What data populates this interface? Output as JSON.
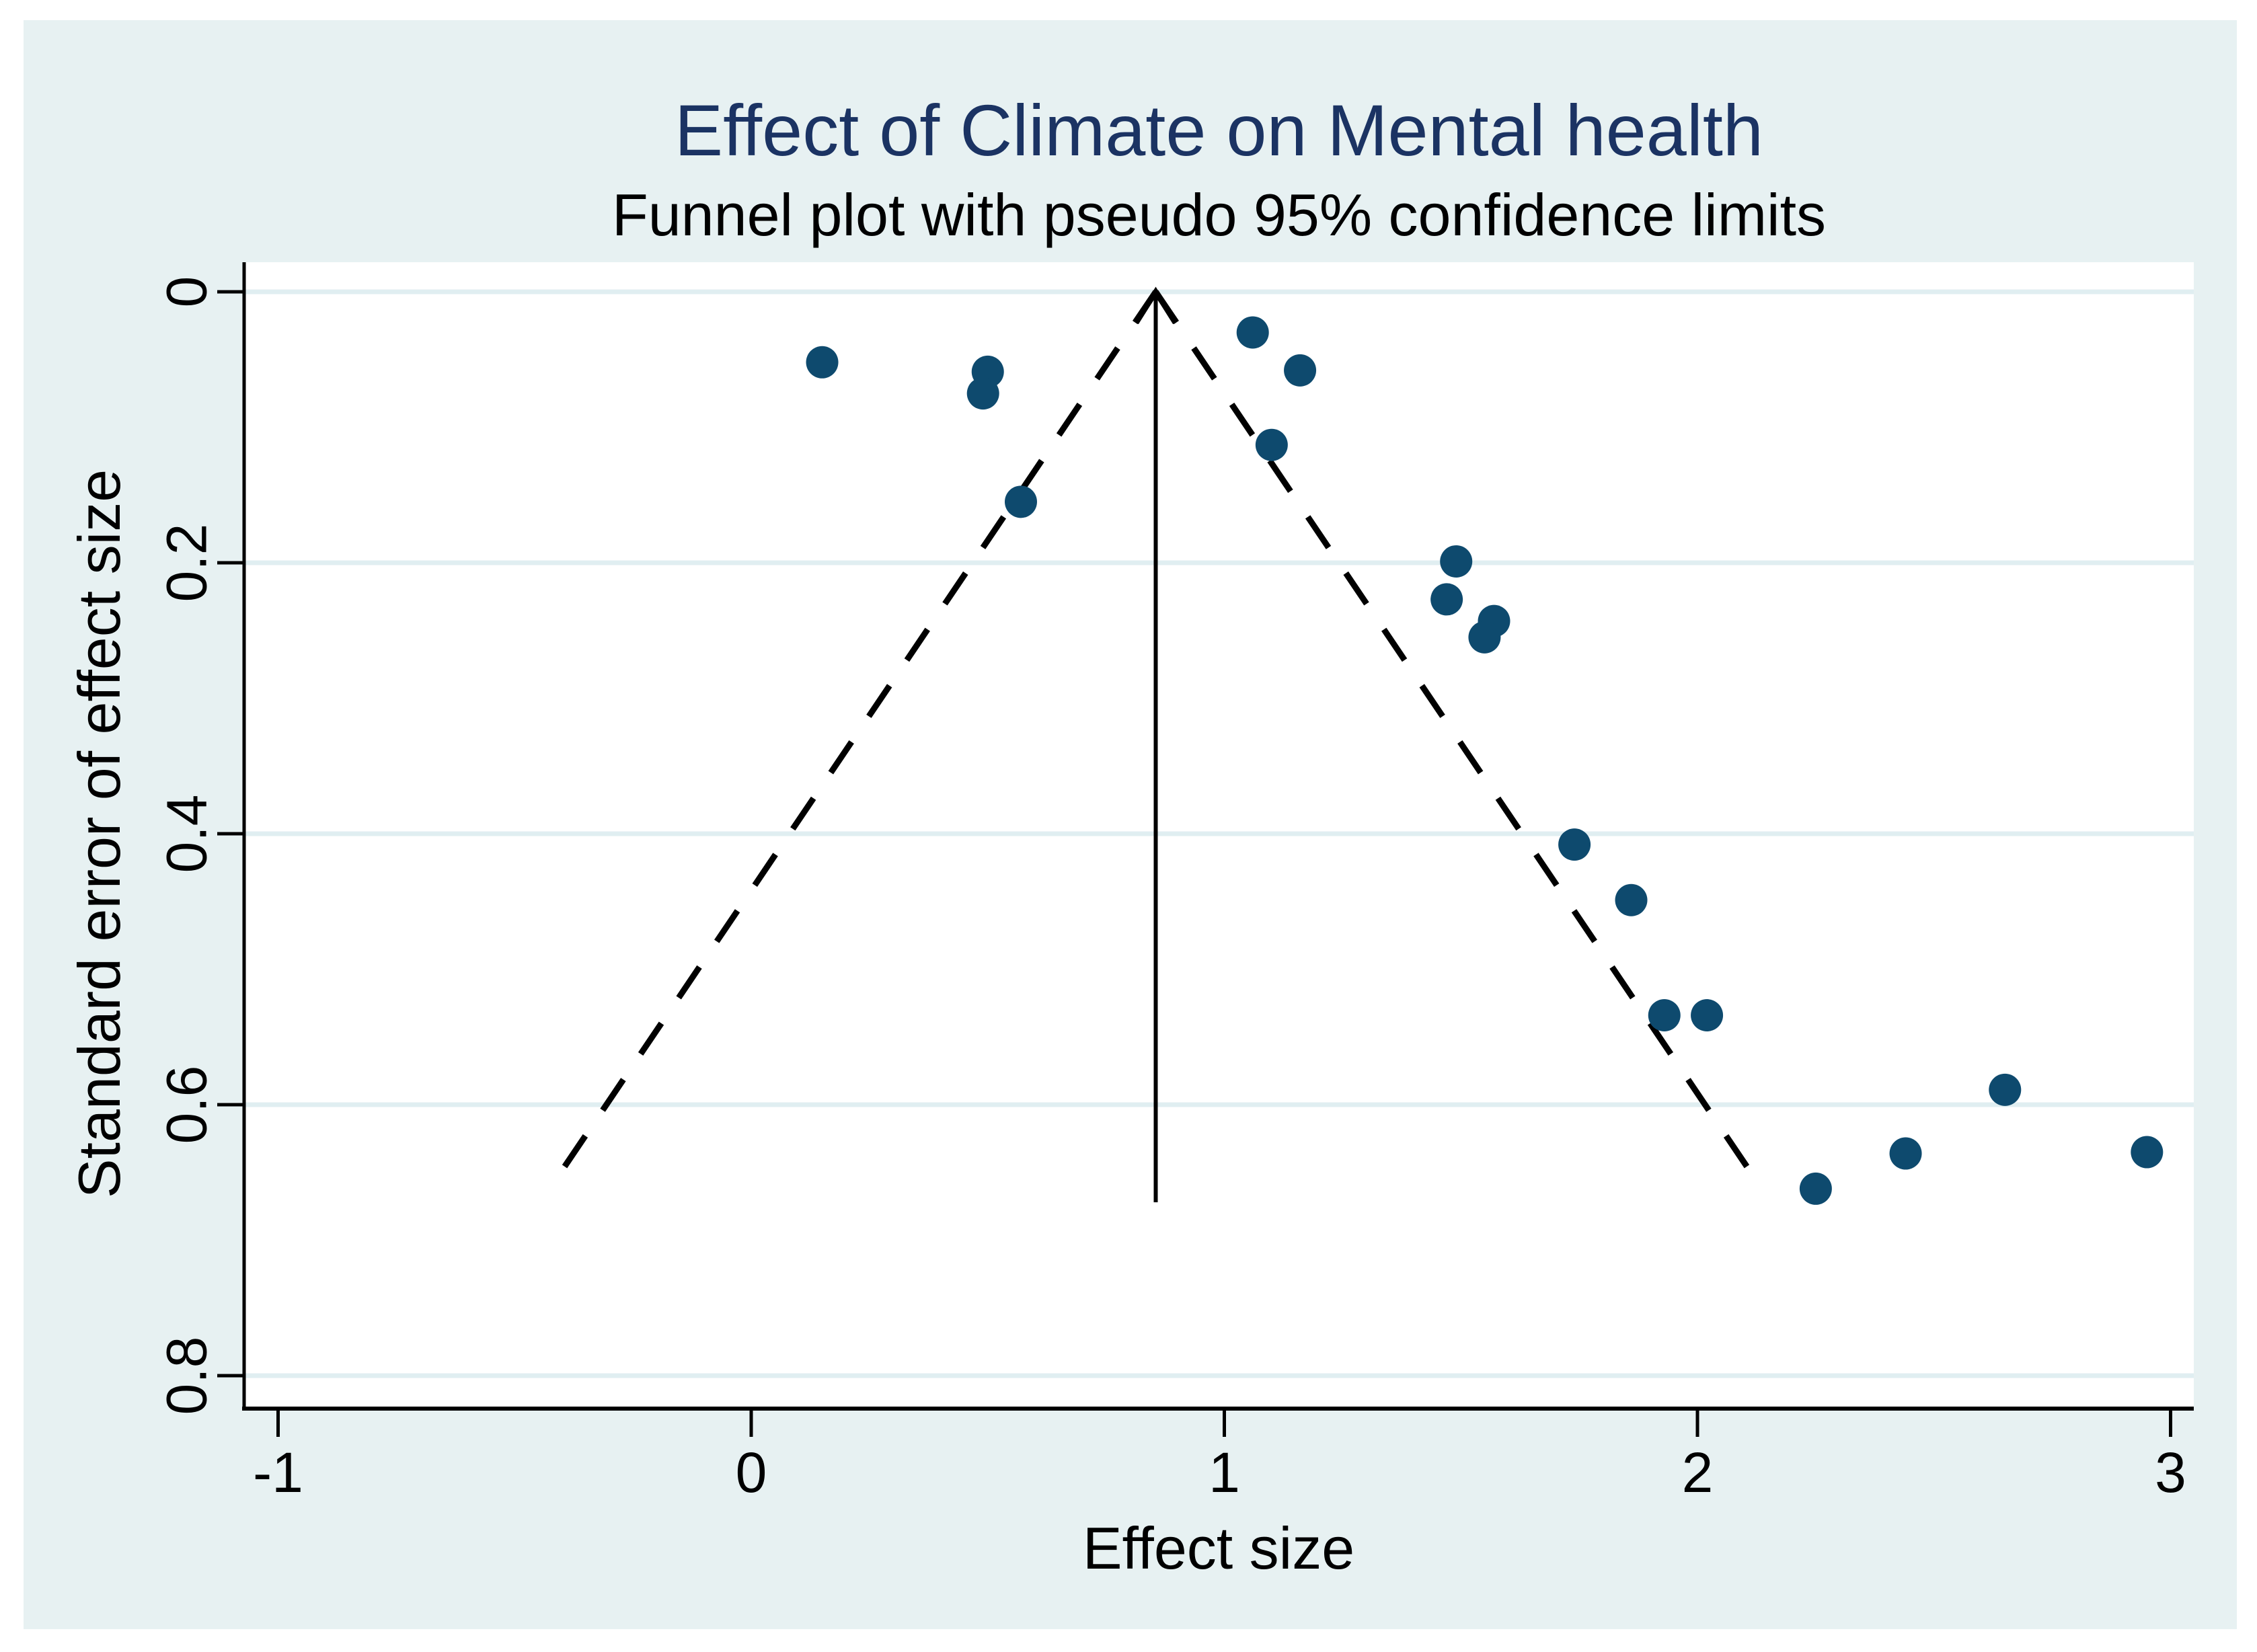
{
  "chart_data": {
    "type": "scatter",
    "chart_kind": "funnel-plot",
    "title": "Effect of Climate on Mental health",
    "subtitle": "Funnel plot with pseudo 95% confidence limits",
    "xlabel": "Effect size",
    "ylabel": "Standard error of effect size",
    "x_ticks": [
      -1,
      0,
      1,
      2,
      3
    ],
    "x_tick_labels": [
      "-1",
      "0",
      "1",
      "2",
      "3"
    ],
    "y_ticks": [
      0,
      0.2,
      0.4,
      0.6,
      0.8
    ],
    "y_tick_labels": [
      "0",
      "0.2",
      "0.4",
      "0.6",
      "0.8"
    ],
    "xlim": [
      -1.07,
      3.05
    ],
    "ylim": [
      -0.022,
      0.824
    ],
    "y_axis_inverted": true,
    "grid": "horizontal-only",
    "legend": "none",
    "points": [
      {
        "effect": 0.15,
        "se": 0.052
      },
      {
        "effect": 0.5,
        "se": 0.059
      },
      {
        "effect": 0.49,
        "se": 0.075
      },
      {
        "effect": 0.57,
        "se": 0.155
      },
      {
        "effect": 1.06,
        "se": 0.03
      },
      {
        "effect": 1.16,
        "se": 0.058
      },
      {
        "effect": 1.1,
        "se": 0.113
      },
      {
        "effect": 1.49,
        "se": 0.199
      },
      {
        "effect": 1.47,
        "se": 0.227
      },
      {
        "effect": 1.57,
        "se": 0.243
      },
      {
        "effect": 1.55,
        "se": 0.255
      },
      {
        "effect": 1.74,
        "se": 0.408
      },
      {
        "effect": 1.86,
        "se": 0.449
      },
      {
        "effect": 1.93,
        "se": 0.534
      },
      {
        "effect": 2.02,
        "se": 0.534
      },
      {
        "effect": 2.25,
        "se": 0.662
      },
      {
        "effect": 2.44,
        "se": 0.636
      },
      {
        "effect": 2.65,
        "se": 0.589
      },
      {
        "effect": 2.95,
        "se": 0.635
      }
    ],
    "pooled_effect_line": {
      "effect": 0.855,
      "se_from": 0,
      "se_to": 0.672,
      "style": "solid",
      "arrow": "up"
    },
    "pseudo_ci_lines": {
      "apex_effect": 0.855,
      "apex_se": 0,
      "left_end_effect": -0.428,
      "right_end_effect": 2.138,
      "end_se": 0.663,
      "nominal_multiplier": 1.96,
      "style": "dashed"
    },
    "colors": {
      "canvas_bg": "#e7f1f2",
      "plot_bg": "#ffffff",
      "gridline": "#e0eef1",
      "marker": "#0e4a6e",
      "title_text": "#1b3363",
      "text": "#000000",
      "lines": "#000000"
    }
  }
}
